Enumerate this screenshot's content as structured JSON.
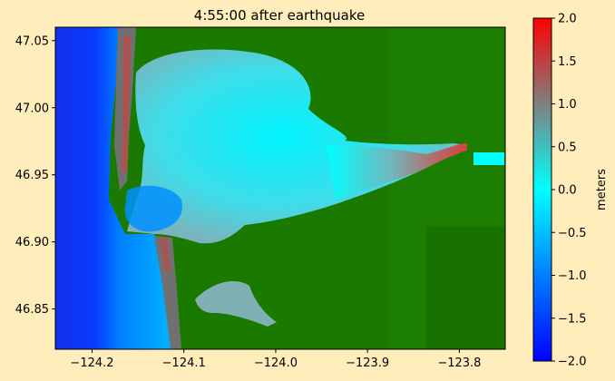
{
  "chart_data": {
    "type": "heatmap",
    "title": "4:55:00 after earthquake",
    "x_ticks": [
      -124.2,
      -124.1,
      -124.0,
      -123.9,
      -123.8
    ],
    "x_tick_labels": [
      "−124.2",
      "−124.1",
      "−124.0",
      "−123.9",
      "−123.8"
    ],
    "xlim": [
      -124.24,
      -123.75
    ],
    "y_ticks": [
      46.85,
      46.9,
      46.95,
      47.0,
      47.05
    ],
    "y_tick_labels": [
      "46.85",
      "46.90",
      "46.95",
      "47.00",
      "47.05"
    ],
    "ylim": [
      46.82,
      47.06
    ],
    "colorbar": {
      "label": "meters",
      "range": [
        -2.0,
        2.0
      ],
      "ticks": [
        2.0,
        1.5,
        1.0,
        0.5,
        0.0,
        -0.5,
        -1.0,
        -1.5,
        -2.0
      ],
      "tick_labels": [
        "2.0",
        "1.5",
        "1.0",
        "0.5",
        "0.0",
        "−0.5",
        "−1.0",
        "−1.5",
        "−2.0"
      ],
      "colors": [
        "#0000ff",
        "#00ffff",
        "#ff0000"
      ]
    },
    "land_color": "#1a7a00",
    "grid": false
  }
}
